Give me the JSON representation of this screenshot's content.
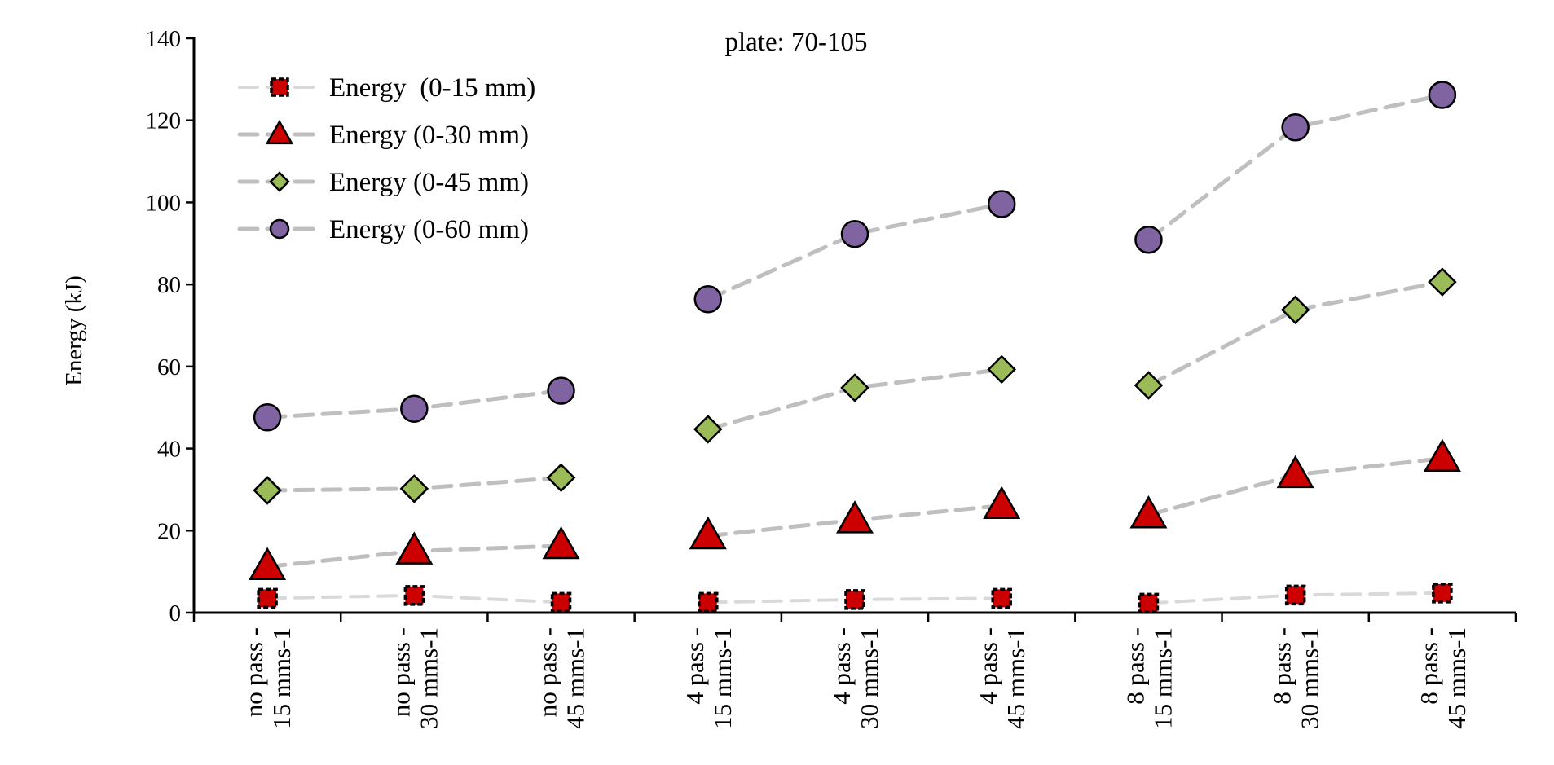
{
  "chart_data": {
    "type": "line",
    "title": "plate: 70-105",
    "xlabel": "",
    "ylabel": "Energy (kJ)",
    "ylim": [
      0,
      140
    ],
    "yticks": [
      0,
      20,
      40,
      60,
      80,
      100,
      120,
      140
    ],
    "grid": false,
    "legend_position": "top-left",
    "categories": [
      [
        "no pass -",
        "15 mms-1"
      ],
      [
        "no pass -",
        "30 mms-1"
      ],
      [
        "no pass -",
        "45 mms-1"
      ],
      [
        "4 pass -",
        "15 mms-1"
      ],
      [
        "4 pass -",
        "30 mms-1"
      ],
      [
        "4 pass -",
        "45 mms-1"
      ],
      [
        "8 pass -",
        "15 mms-1"
      ],
      [
        "8 pass -",
        "30 mms-1"
      ],
      [
        "8 pass -",
        "45 mms-1"
      ]
    ],
    "groups": [
      [
        0,
        2
      ],
      [
        3,
        5
      ],
      [
        6,
        8
      ]
    ],
    "series": [
      {
        "name": "Energy  (0-15 mm)",
        "marker": "square",
        "fill": "#cc0000",
        "line_color": "#d9d9d9",
        "values": [
          3.5,
          4.2,
          2.5,
          2.5,
          3.2,
          3.5,
          2.3,
          4.3,
          4.8
        ]
      },
      {
        "name": "Energy (0-30 mm)",
        "marker": "triangle",
        "fill": "#cc0000",
        "line_color": "#bfbfbf",
        "values": [
          11.2,
          15.0,
          16.3,
          18.7,
          22.6,
          26.1,
          23.8,
          33.6,
          37.6
        ]
      },
      {
        "name": "Energy (0-45 mm)",
        "marker": "diamond",
        "fill": "#9bbb59",
        "line_color": "#bfbfbf",
        "values": [
          29.8,
          30.2,
          32.9,
          44.7,
          54.8,
          59.3,
          55.4,
          73.8,
          80.6
        ]
      },
      {
        "name": "Energy (0-60 mm)",
        "marker": "circle",
        "fill": "#8064a2",
        "line_color": "#bfbfbf",
        "values": [
          47.6,
          49.7,
          54.1,
          76.4,
          92.3,
          99.6,
          90.9,
          118.3,
          126.2
        ]
      }
    ]
  }
}
